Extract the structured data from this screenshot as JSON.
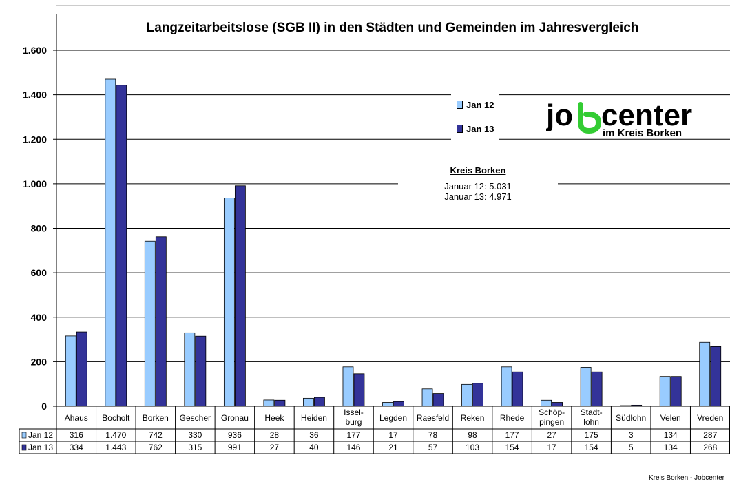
{
  "chart_data": {
    "type": "bar",
    "title": "Langzeitarbeitslose (SGB II) in den Städten und Gemeinden im Jahresvergleich",
    "categories": [
      "Ahaus",
      "Bocholt",
      "Borken",
      "Gescher",
      "Gronau",
      "Heek",
      "Heiden",
      "Issel-\nburg",
      "Legden",
      "Raesfeld",
      "Reken",
      "Rhede",
      "Schöp-\npingen",
      "Stadt-\nlohn",
      "Südlohn",
      "Velen",
      "Vreden"
    ],
    "series": [
      {
        "name": "Jan 12",
        "color": "#99ccff",
        "values": [
          316,
          1470,
          742,
          330,
          936,
          28,
          36,
          177,
          17,
          78,
          98,
          177,
          27,
          175,
          3,
          134,
          287
        ],
        "labels": [
          "316",
          "1.470",
          "742",
          "330",
          "936",
          "28",
          "36",
          "177",
          "17",
          "78",
          "98",
          "177",
          "27",
          "175",
          "3",
          "134",
          "287"
        ]
      },
      {
        "name": "Jan 13",
        "color": "#333399",
        "values": [
          334,
          1443,
          762,
          315,
          991,
          27,
          40,
          146,
          21,
          57,
          103,
          154,
          17,
          154,
          5,
          134,
          268
        ],
        "labels": [
          "334",
          "1.443",
          "762",
          "315",
          "991",
          "27",
          "40",
          "146",
          "21",
          "57",
          "103",
          "154",
          "17",
          "154",
          "5",
          "134",
          "268"
        ]
      }
    ],
    "ylim": [
      0,
      1700
    ],
    "yticks": [
      0,
      200,
      400,
      600,
      800,
      1000,
      1200,
      1400,
      1600
    ],
    "ytick_labels": [
      "0",
      "200",
      "400",
      "600",
      "800",
      "1.000",
      "1.200",
      "1.400",
      "1.600"
    ],
    "grid": true,
    "legend": "top-right",
    "xlabel": "",
    "ylabel": ""
  },
  "annotation": {
    "heading": "Kreis Borken",
    "line1": "Januar 12: 5.031",
    "line2": "Januar 13: 4.971"
  },
  "logo": {
    "word": "jobcenter",
    "sub": "im Kreis Borken"
  },
  "footer": "Kreis Borken - Jobcenter"
}
